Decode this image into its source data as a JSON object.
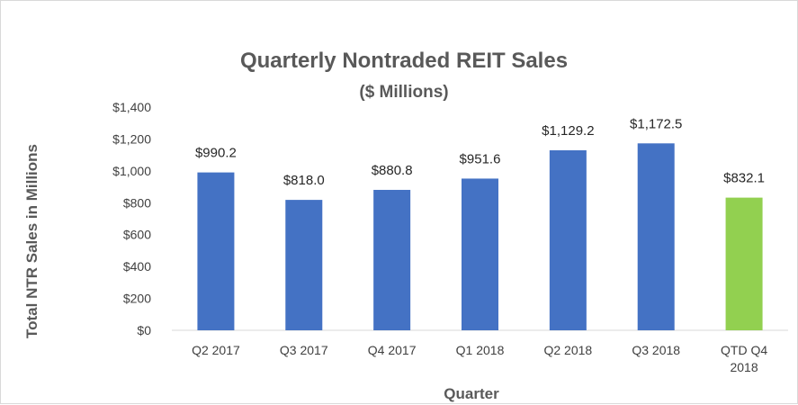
{
  "chart_data": {
    "type": "bar",
    "title": "Quarterly Nontraded REIT Sales",
    "subtitle": "($ Millions)",
    "xlabel": "Quarter",
    "ylabel": "Total NTR Sales in Millions",
    "categories": [
      "Q2 2017",
      "Q3 2017",
      "Q4 2017",
      "Q1 2018",
      "Q2 2018",
      "Q3 2018",
      "QTD Q4 2018"
    ],
    "category_lines": [
      [
        "Q2 2017"
      ],
      [
        "Q3 2017"
      ],
      [
        "Q4 2017"
      ],
      [
        "Q1 2018"
      ],
      [
        "Q2 2018"
      ],
      [
        "Q3 2018"
      ],
      [
        "QTD Q4",
        "2018"
      ]
    ],
    "values": [
      990.2,
      818.0,
      880.8,
      951.6,
      1129.2,
      1172.5,
      832.1
    ],
    "data_labels": [
      "$990.2",
      "$818.0",
      "$880.8",
      "$951.6",
      "$1,129.2",
      "$1,172.5",
      "$832.1"
    ],
    "bar_colors": [
      "#4472c4",
      "#4472c4",
      "#4472c4",
      "#4472c4",
      "#4472c4",
      "#4472c4",
      "#92d050"
    ],
    "ylim": [
      0,
      1400
    ],
    "yticks": [
      0,
      200,
      400,
      600,
      800,
      1000,
      1200,
      1400
    ],
    "ytick_labels": [
      "$0",
      "$200",
      "$400",
      "$600",
      "$800",
      "$1,000",
      "$1,200",
      "$1,400"
    ],
    "grid": false,
    "legend": "none"
  }
}
